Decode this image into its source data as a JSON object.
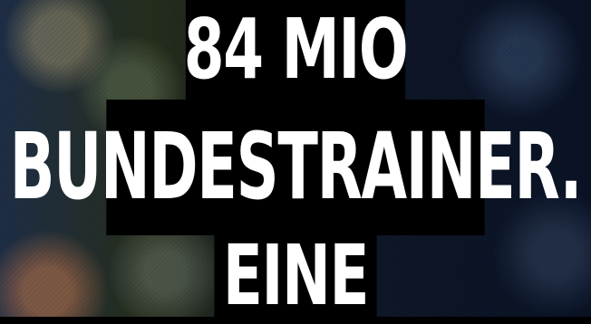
{
  "headline": {
    "line1": "84 MIO",
    "line2": "BUNDESTRAINER.",
    "line3": "EINE"
  }
}
